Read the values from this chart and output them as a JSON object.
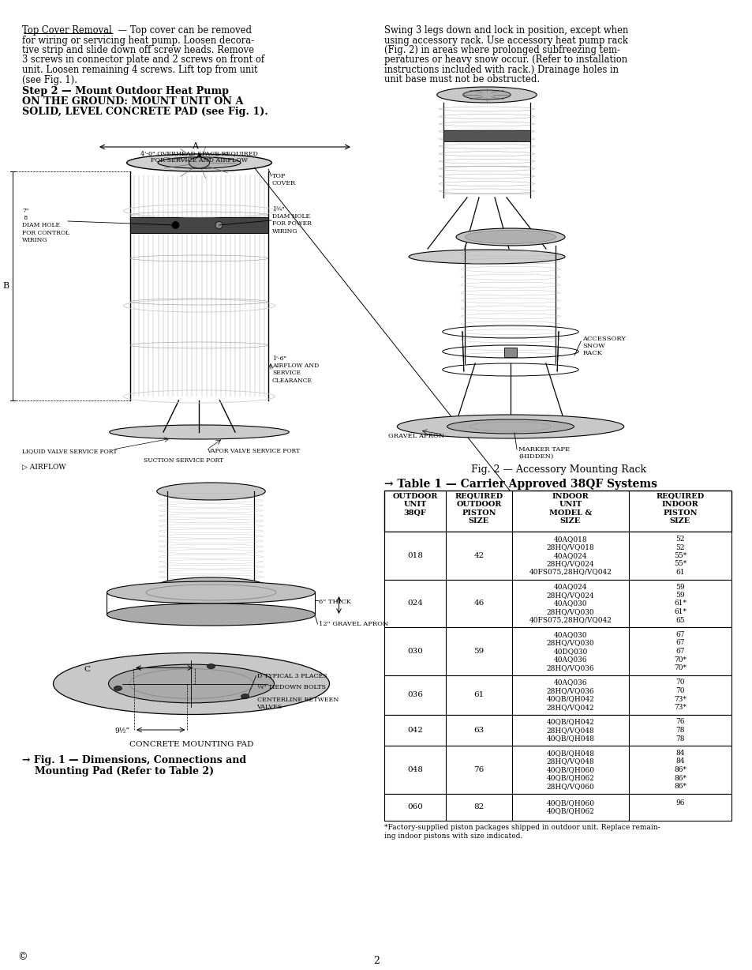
{
  "page_background": "#ffffff",
  "top_text_right": [
    "Swing 3 legs down and lock in position, except when",
    "using accessory rack. Use accessory heat pump rack",
    "(Fig. 2) in areas where prolonged subfreezing tem-",
    "peratures or heavy snow occur. (Refer to installation",
    "instructions included with rack.) Drainage holes in",
    "unit base must not be obstructed."
  ],
  "table_title": "→ Table 1 — Carrier Approved 38QF Systems",
  "table_headers": [
    "OUTDOOR\nUNIT\n38QF",
    "REQUIRED\nOUTDOOR\nPISTON\nSIZE",
    "INDOOR\nUNIT\nMODEL &\nSIZE",
    "REQUIRED\nINDOOR\nPISTON\nSIZE"
  ],
  "table_rows": [
    {
      "outdoor": "018",
      "req_outdoor": "42",
      "indoor_models": [
        "40AQ018",
        "28HQ/VQ018",
        "40AQ024",
        "28HQ/VQ024",
        "40FS075,28HQ/VQ042"
      ],
      "req_indoor": [
        "52",
        "52",
        "55*",
        "55*",
        "61"
      ]
    },
    {
      "outdoor": "024",
      "req_outdoor": "46",
      "indoor_models": [
        "40AQ024",
        "28HQ/VQ024",
        "40AQ030",
        "28HQ/VQ030",
        "40FS075,28HQ/VQ042"
      ],
      "req_indoor": [
        "59",
        "59",
        "61*",
        "61*",
        "65"
      ]
    },
    {
      "outdoor": "030",
      "req_outdoor": "59",
      "indoor_models": [
        "40AQ030",
        "28HQ/VQ030",
        "40DQ030",
        "40AQ036",
        "28HQ/VQ036"
      ],
      "req_indoor": [
        "67",
        "67",
        "67",
        "70*",
        "70*"
      ]
    },
    {
      "outdoor": "036",
      "req_outdoor": "61",
      "indoor_models": [
        "40AQ036",
        "28HQ/VQ036",
        "40QB/QH042",
        "28HQ/VQ042"
      ],
      "req_indoor": [
        "70",
        "70",
        "73*",
        "73*"
      ]
    },
    {
      "outdoor": "042",
      "req_outdoor": "63",
      "indoor_models": [
        "40QB/QH042",
        "28HQ/VQ048",
        "40QB/QH048"
      ],
      "req_indoor": [
        "76",
        "78",
        "78"
      ]
    },
    {
      "outdoor": "048",
      "req_outdoor": "76",
      "indoor_models": [
        "40QB/QH048",
        "28HQ/VQ048",
        "40QB/QH060",
        "40QB/QH062",
        "28HQ/VQ060"
      ],
      "req_indoor": [
        "84",
        "84",
        "86*",
        "86*",
        "86*"
      ]
    },
    {
      "outdoor": "060",
      "req_outdoor": "82",
      "indoor_models": [
        "40QB/QH060",
        "40QB/QH062"
      ],
      "req_indoor": [
        "96",
        ""
      ]
    }
  ],
  "table_footnote": "*Factory-supplied piston packages shipped in outdoor unit. Replace remain-\ning indoor pistons with size indicated."
}
